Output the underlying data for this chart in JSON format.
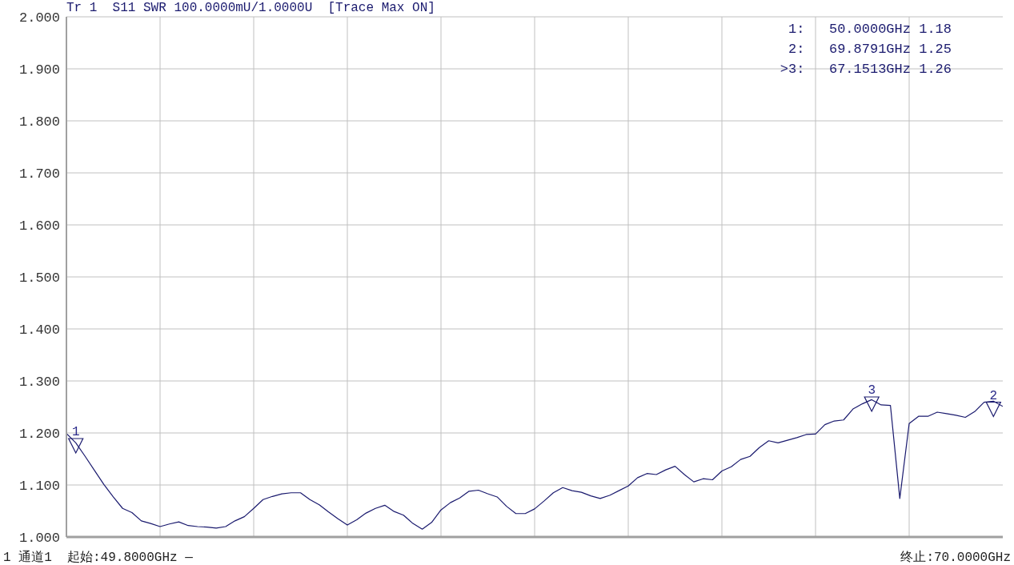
{
  "chart_data": {
    "type": "line",
    "title": "Tr 1  S11 SWR 100.0000mU/1.0000U  [Trace Max ON]",
    "categories": [
      null,
      null,
      null,
      null,
      null,
      null,
      null,
      null,
      null,
      null,
      null,
      null,
      null,
      null,
      null,
      null,
      null,
      null,
      null,
      null,
      null,
      null,
      null,
      null,
      null,
      null,
      null,
      null,
      null,
      null,
      null,
      null,
      null,
      null,
      null,
      null,
      null,
      null,
      null,
      null,
      null,
      null,
      null,
      null,
      null,
      null,
      null,
      null,
      null,
      null,
      null,
      null,
      null,
      null,
      null,
      null,
      null,
      null,
      null,
      null,
      null,
      null,
      null,
      null,
      null,
      null,
      null,
      null,
      null,
      null,
      null,
      null,
      null,
      null,
      null,
      null,
      null,
      null,
      null,
      null,
      null,
      null,
      null,
      null,
      null,
      null,
      null,
      null,
      null,
      null,
      null,
      null,
      null,
      null,
      null,
      null,
      null,
      null,
      null,
      null,
      null
    ],
    "ylim": [
      1,
      2
    ],
    "yticks": [
      {
        "value": 1,
        "label": "1.000"
      },
      {
        "value": 1.1,
        "label": "1.100"
      },
      {
        "value": 1.2,
        "label": "1.200"
      },
      {
        "value": 1.3,
        "label": "1.300"
      },
      {
        "value": 1.4,
        "label": "1.400"
      },
      {
        "value": 1.5,
        "label": "1.500"
      },
      {
        "value": 1.6,
        "label": "1.600"
      },
      {
        "value": 1.7,
        "label": "1.700"
      },
      {
        "value": 1.8,
        "label": "1.800"
      },
      {
        "value": 1.9,
        "label": "1.900"
      },
      {
        "value": 2,
        "label": "2.000"
      }
    ],
    "grid": true,
    "tick_labels": "y",
    "marker": "none",
    "line_style": "solid",
    "series": [
      {
        "color": "#1a1a6e",
        "values": [
          1.199,
          1.181,
          1.155,
          1.128,
          1.101,
          1.077,
          1.055,
          1.047,
          1.031,
          1.026,
          1.02,
          1.025,
          1.029,
          1.022,
          1.02,
          1.019,
          1.017,
          1.02,
          1.031,
          1.039,
          1.055,
          1.072,
          1.078,
          1.083,
          1.085,
          1.085,
          1.072,
          1.062,
          1.048,
          1.035,
          1.023,
          1.033,
          1.046,
          1.055,
          1.061,
          1.049,
          1.042,
          1.026,
          1.015,
          1.028,
          1.052,
          1.066,
          1.075,
          1.088,
          1.09,
          1.083,
          1.077,
          1.059,
          1.045,
          1.045,
          1.054,
          1.069,
          1.085,
          1.095,
          1.089,
          1.086,
          1.079,
          1.074,
          1.08,
          1.089,
          1.098,
          1.114,
          1.122,
          1.12,
          1.129,
          1.136,
          1.12,
          1.106,
          1.112,
          1.11,
          1.127,
          1.135,
          1.149,
          1.155,
          1.172,
          1.185,
          1.181,
          1.186,
          1.191,
          1.197,
          1.198,
          1.216,
          1.223,
          1.225,
          1.246,
          1.256,
          1.264,
          1.254,
          1.253,
          1.074,
          1.218,
          1.232,
          1.232,
          1.24,
          1.237,
          1.234,
          1.23,
          1.241,
          1.259,
          1.261,
          1.251
        ]
      },
      {
        "type": "scatter",
        "name": "1",
        "color": "#1a1a6e",
        "marker": "triangle",
        "values": [
          null,
          1.18,
          null,
          null,
          null,
          null,
          null,
          null,
          null,
          null,
          null,
          null,
          null,
          null,
          null,
          null,
          null,
          null,
          null,
          null,
          null,
          null,
          null,
          null,
          null,
          null,
          null,
          null,
          null,
          null,
          null,
          null,
          null,
          null,
          null,
          null,
          null,
          null,
          null,
          null,
          null,
          null,
          null,
          null,
          null,
          null,
          null,
          null,
          null,
          null,
          null,
          null,
          null,
          null,
          null,
          null,
          null,
          null,
          null,
          null,
          null,
          null,
          null,
          null,
          null,
          null,
          null,
          null,
          null,
          null,
          null,
          null,
          null,
          null,
          null,
          null,
          null,
          null,
          null,
          null,
          null,
          null,
          null,
          null,
          null,
          null,
          null,
          null,
          null,
          null,
          null,
          null,
          null,
          null,
          null,
          null,
          null,
          null,
          null,
          null,
          null
        ]
      },
      {
        "type": "scatter",
        "name": "2",
        "color": "#1a1a6e",
        "marker": "triangle",
        "values": [
          null,
          null,
          null,
          null,
          null,
          null,
          null,
          null,
          null,
          null,
          null,
          null,
          null,
          null,
          null,
          null,
          null,
          null,
          null,
          null,
          null,
          null,
          null,
          null,
          null,
          null,
          null,
          null,
          null,
          null,
          null,
          null,
          null,
          null,
          null,
          null,
          null,
          null,
          null,
          null,
          null,
          null,
          null,
          null,
          null,
          null,
          null,
          null,
          null,
          null,
          null,
          null,
          null,
          null,
          null,
          null,
          null,
          null,
          null,
          null,
          null,
          null,
          null,
          null,
          null,
          null,
          null,
          null,
          null,
          null,
          null,
          null,
          null,
          null,
          null,
          null,
          null,
          null,
          null,
          null,
          null,
          null,
          null,
          null,
          null,
          null,
          null,
          null,
          null,
          null,
          null,
          null,
          null,
          null,
          null,
          null,
          null,
          null,
          null,
          1.25,
          null
        ]
      },
      {
        "type": "scatter",
        "name": "3",
        "color": "#1a1a6e",
        "marker": "triangle",
        "values": [
          null,
          null,
          null,
          null,
          null,
          null,
          null,
          null,
          null,
          null,
          null,
          null,
          null,
          null,
          null,
          null,
          null,
          null,
          null,
          null,
          null,
          null,
          null,
          null,
          null,
          null,
          null,
          null,
          null,
          null,
          null,
          null,
          null,
          null,
          null,
          null,
          null,
          null,
          null,
          null,
          null,
          null,
          null,
          null,
          null,
          null,
          null,
          null,
          null,
          null,
          null,
          null,
          null,
          null,
          null,
          null,
          null,
          null,
          null,
          null,
          null,
          null,
          null,
          null,
          null,
          null,
          null,
          null,
          null,
          null,
          null,
          null,
          null,
          null,
          null,
          null,
          null,
          null,
          null,
          null,
          null,
          null,
          null,
          null,
          null,
          null,
          1.26,
          null,
          null,
          null,
          null,
          null,
          null,
          null,
          null,
          null,
          null,
          null,
          null,
          null,
          null
        ]
      }
    ],
    "annotations": [
      "1:   50.0000GHz 1.18",
      "2:   69.8791GHz 1.25",
      ">3:   67.1513GHz 1.26",
      "1 通道1  起始:49.8000GHz —",
      "终止:70.0000GHz"
    ]
  }
}
